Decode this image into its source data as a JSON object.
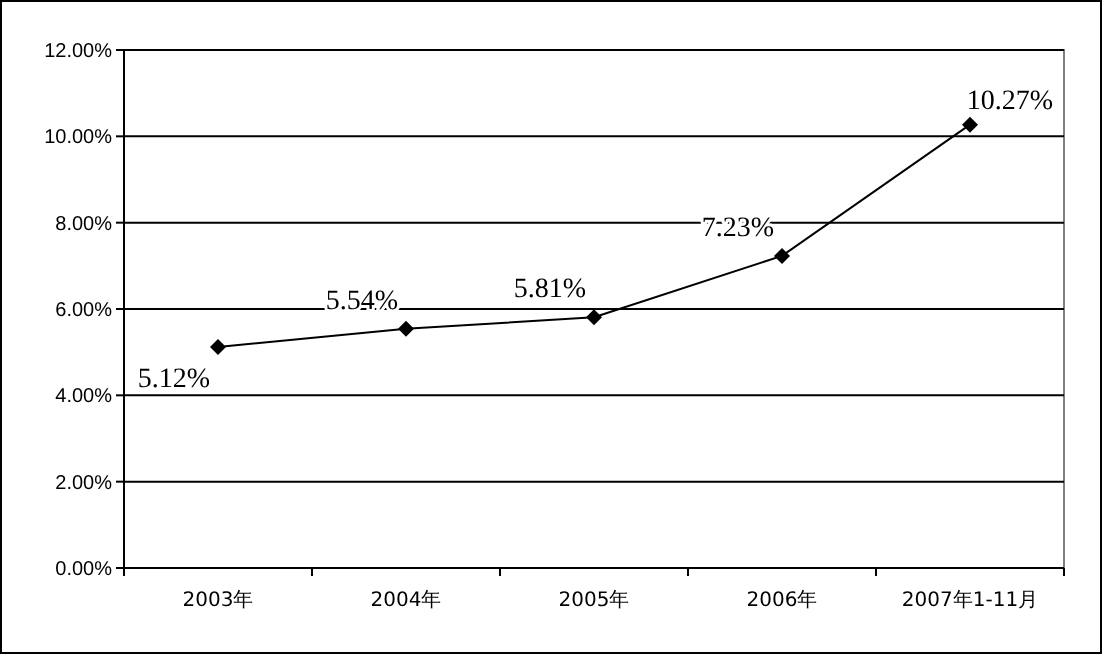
{
  "chart_data": {
    "type": "line",
    "categories": [
      "2003年",
      "2004年",
      "2005年",
      "2006年",
      "2007年1-11月"
    ],
    "series": [
      {
        "color": "#000000",
        "values": [
          5.12,
          5.54,
          5.81,
          7.23,
          10.27
        ],
        "value_labels": [
          "5.12%",
          "5.54%",
          "5.81%",
          "7.23%",
          "10.27%"
        ]
      }
    ],
    "ylim": [
      0,
      12
    ],
    "yticks": [
      {
        "value": 0,
        "label": "0.00%"
      },
      {
        "value": 2,
        "label": "2.00%"
      },
      {
        "value": 4,
        "label": "4.00%"
      },
      {
        "value": 6,
        "label": "6.00%"
      },
      {
        "value": 8,
        "label": "8.00%"
      },
      {
        "value": 10,
        "label": "10.00%"
      },
      {
        "value": 12,
        "label": "12.00%"
      }
    ],
    "grid": "y",
    "marker": "diamond",
    "line_style": "solid"
  }
}
